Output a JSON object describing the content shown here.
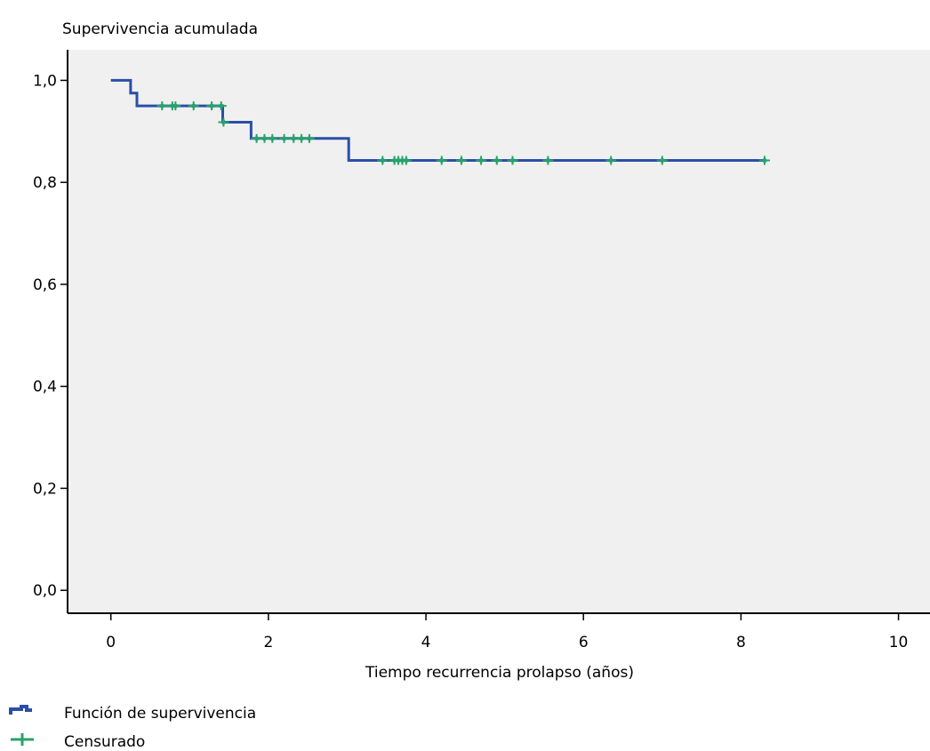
{
  "chart_data": {
    "type": "line",
    "title": "",
    "ylabel": "Supervivencia acumulada",
    "xlabel": "Tiempo recurrencia prolapso (años)",
    "xlim": [
      -0.55,
      10.4
    ],
    "ylim": [
      -0.045,
      1.06
    ],
    "xticks": [
      0,
      2,
      4,
      6,
      8,
      10
    ],
    "xtick_labels": [
      "0",
      "2",
      "4",
      "6",
      "8",
      "10"
    ],
    "yticks": [
      0.0,
      0.2,
      0.4,
      0.6,
      0.8,
      1.0
    ],
    "ytick_labels": [
      "0,0",
      "0,2",
      "0,4",
      "0,6",
      "0,8",
      "1,0"
    ],
    "grid": false,
    "legend_position": "bottom-left",
    "colors": {
      "survival": "#2a4fa8",
      "censored": "#27a36a",
      "plot_bg": "#f0f0f0",
      "axis": "#000000"
    },
    "series": [
      {
        "name": "Función de supervivencia",
        "step": true,
        "x": [
          0,
          0.25,
          0.25,
          0.33,
          0.33,
          1.42,
          1.42,
          1.78,
          1.78,
          3.02,
          3.02,
          8.3
        ],
        "y": [
          1.0,
          1.0,
          0.975,
          0.975,
          0.95,
          0.95,
          0.918,
          0.918,
          0.886,
          0.886,
          0.843,
          0.843
        ]
      },
      {
        "name": "Censurado",
        "marker": "+",
        "x": [
          0.65,
          0.78,
          0.82,
          1.05,
          1.28,
          1.4,
          1.43,
          1.85,
          1.95,
          2.05,
          2.2,
          2.32,
          2.42,
          2.52,
          3.45,
          3.6,
          3.65,
          3.7,
          3.75,
          4.2,
          4.45,
          4.7,
          4.9,
          5.1,
          5.55,
          6.35,
          7.0,
          8.3
        ],
        "y": [
          0.95,
          0.95,
          0.95,
          0.95,
          0.95,
          0.95,
          0.918,
          0.886,
          0.886,
          0.886,
          0.886,
          0.886,
          0.886,
          0.886,
          0.843,
          0.843,
          0.843,
          0.843,
          0.843,
          0.843,
          0.843,
          0.843,
          0.843,
          0.843,
          0.843,
          0.843,
          0.843,
          0.843
        ]
      }
    ]
  }
}
